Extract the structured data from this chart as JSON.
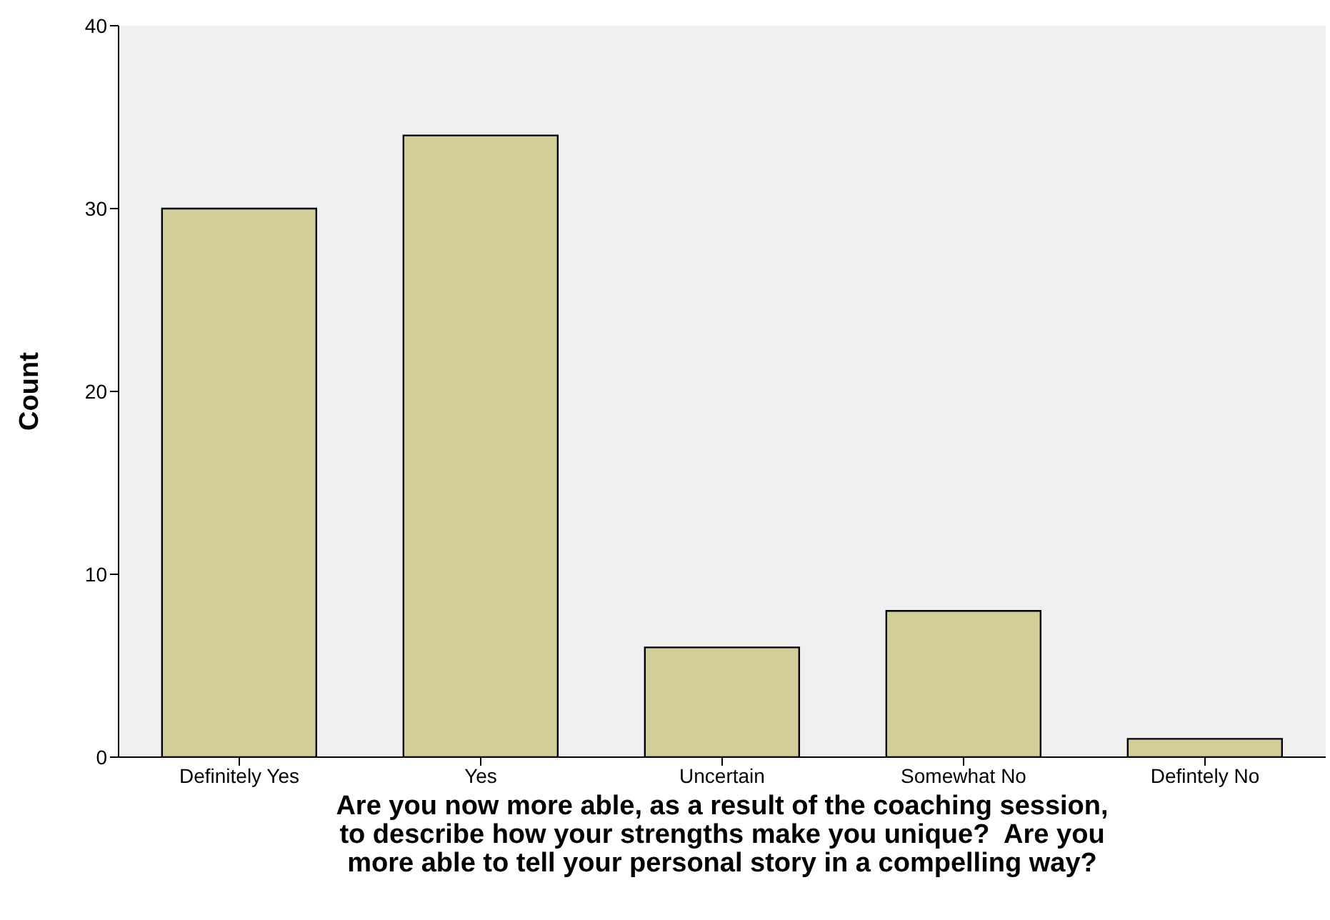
{
  "chart_data": {
    "type": "bar",
    "categories": [
      "Definitely Yes",
      "Yes",
      "Uncertain",
      "Somewhat No",
      "Defintely No"
    ],
    "values": [
      30,
      34,
      6,
      8,
      1
    ],
    "color": "#d3ce97",
    "ylabel": "Count",
    "xlabel": "Are you now more able, as a result of the coaching session,\nto describe how your strengths make you unique?  Are you\nmore able to tell your personal story in a compelling way?",
    "ylim": [
      0,
      40
    ],
    "yticks": [
      0,
      10,
      20,
      30,
      40
    ],
    "grid": false
  }
}
